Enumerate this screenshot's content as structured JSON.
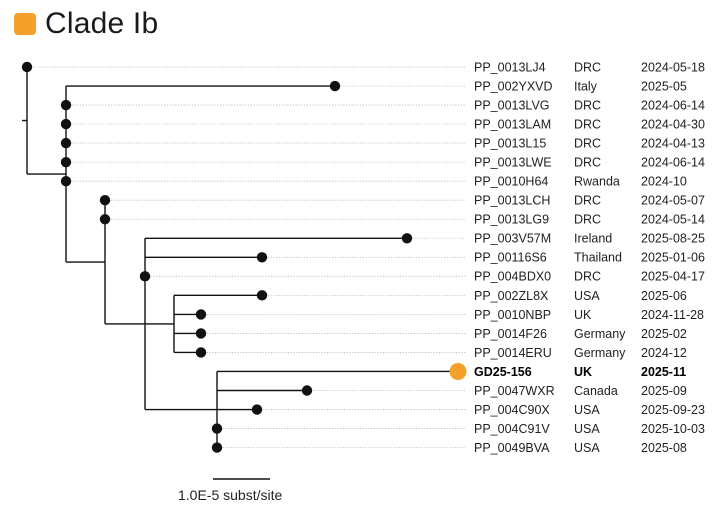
{
  "title": "Clade Ib",
  "colors": {
    "highlight": "#f5a02a",
    "node": "#111111",
    "branch": "#111111",
    "guide": "#b8b8b8"
  },
  "scale_bar": {
    "label": "1.0E-5 subst/site"
  },
  "highlighted_tip": "GD25-156",
  "tips": [
    {
      "id": "PP_0013LJ4",
      "country": "DRC",
      "date": "2024-05-18"
    },
    {
      "id": "PP_002YXVD",
      "country": "Italy",
      "date": "2025-05"
    },
    {
      "id": "PP_0013LVG",
      "country": "DRC",
      "date": "2024-06-14"
    },
    {
      "id": "PP_0013LAM",
      "country": "DRC",
      "date": "2024-04-30"
    },
    {
      "id": "PP_0013L15",
      "country": "DRC",
      "date": "2024-04-13"
    },
    {
      "id": "PP_0013LWE",
      "country": "DRC",
      "date": "2024-06-14"
    },
    {
      "id": "PP_0010H64",
      "country": "Rwanda",
      "date": "2024-10"
    },
    {
      "id": "PP_0013LCH",
      "country": "DRC",
      "date": "2024-05-07"
    },
    {
      "id": "PP_0013LG9",
      "country": "DRC",
      "date": "2024-05-14"
    },
    {
      "id": "PP_003V57M",
      "country": "Ireland",
      "date": "2025-08-25"
    },
    {
      "id": "PP_00116S6",
      "country": "Thailand",
      "date": "2025-01-06"
    },
    {
      "id": "PP_004BDX0",
      "country": "DRC",
      "date": "2025-04-17"
    },
    {
      "id": "PP_002ZL8X",
      "country": "USA",
      "date": "2025-06"
    },
    {
      "id": "PP_0010NBP",
      "country": "UK",
      "date": "2024-11-28"
    },
    {
      "id": "PP_0014F26",
      "country": "Germany",
      "date": "2025-02"
    },
    {
      "id": "PP_0014ERU",
      "country": "Germany",
      "date": "2024-12"
    },
    {
      "id": "GD25-156",
      "country": "UK",
      "date": "2025-11"
    },
    {
      "id": "PP_0047WXR",
      "country": "Canada",
      "date": "2025-09"
    },
    {
      "id": "PP_004C90X",
      "country": "USA",
      "date": "2025-09-23"
    },
    {
      "id": "PP_004C91V",
      "country": "USA",
      "date": "2025-10-03"
    },
    {
      "id": "PP_0049BVA",
      "country": "USA",
      "date": "2025-08"
    }
  ]
}
